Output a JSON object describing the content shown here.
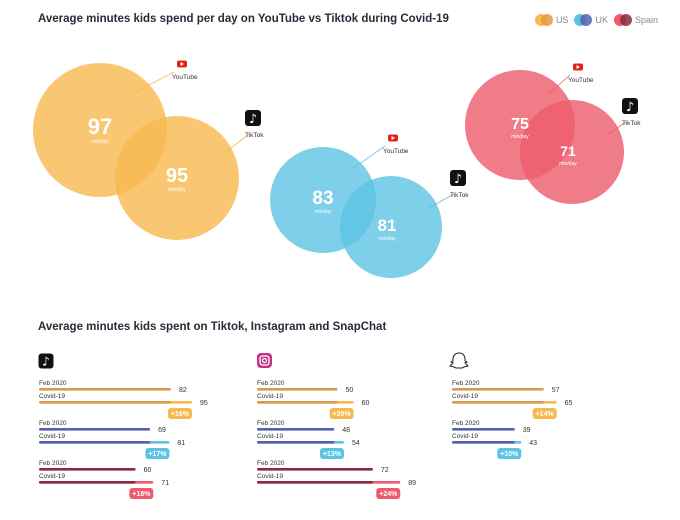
{
  "title1": "Average minutes kids spend per day on YouTube vs Tiktok during Covid-19",
  "title2": "Average minutes kids spent on Tiktok, Instagram and SnapChat",
  "unit": "min/day",
  "legend": [
    {
      "name": "US",
      "color": "#f8b94f"
    },
    {
      "name": "UK",
      "color": "#5ec3e3"
    },
    {
      "name": "Spain",
      "color": "#ee5b6b"
    }
  ],
  "chart_data": [
    {
      "type": "venn",
      "title": "Average minutes kids spend per day on YouTube vs Tiktok during Covid-19",
      "groups": [
        {
          "country": "US",
          "youtube": 97,
          "tiktok": 95,
          "color": "#f8b94f"
        },
        {
          "country": "UK",
          "youtube": 83,
          "tiktok": 81,
          "color": "#5ec3e3"
        },
        {
          "country": "Spain",
          "youtube": 75,
          "tiktok": 71,
          "color": "#ee5b6b"
        }
      ],
      "labels": {
        "youtube": "YouTube",
        "tiktok": "TikTok"
      }
    },
    {
      "type": "bar",
      "title": "Average minutes kids spent on Tiktok, Instagram and SnapChat",
      "row_labels": [
        "Feb 2020",
        "Covid-19"
      ],
      "apps": [
        {
          "app": "TikTok",
          "groups": [
            {
              "feb": 82,
              "covid": 95,
              "change": "+16%"
            },
            {
              "feb": 69,
              "covid": 81,
              "change": "+17%"
            },
            {
              "feb": 60,
              "covid": 71,
              "change": "+18%"
            }
          ]
        },
        {
          "app": "Instagram",
          "groups": [
            {
              "feb": 50,
              "covid": 60,
              "change": "+20%"
            },
            {
              "feb": 48,
              "covid": 54,
              "change": "+13%"
            },
            {
              "feb": 72,
              "covid": 89,
              "change": "+24%"
            }
          ]
        },
        {
          "app": "SnapChat",
          "groups": [
            {
              "feb": 57,
              "covid": 65,
              "change": "+14%"
            },
            {
              "feb": 39,
              "covid": 43,
              "change": "+10%"
            }
          ]
        }
      ],
      "colors": [
        {
          "base": "#d89a4e",
          "light": "#f8b94f"
        },
        {
          "base": "#5561b0",
          "light": "#5ec3e3"
        },
        {
          "base": "#8a2a3e",
          "light": "#ee5b6b"
        }
      ]
    }
  ]
}
